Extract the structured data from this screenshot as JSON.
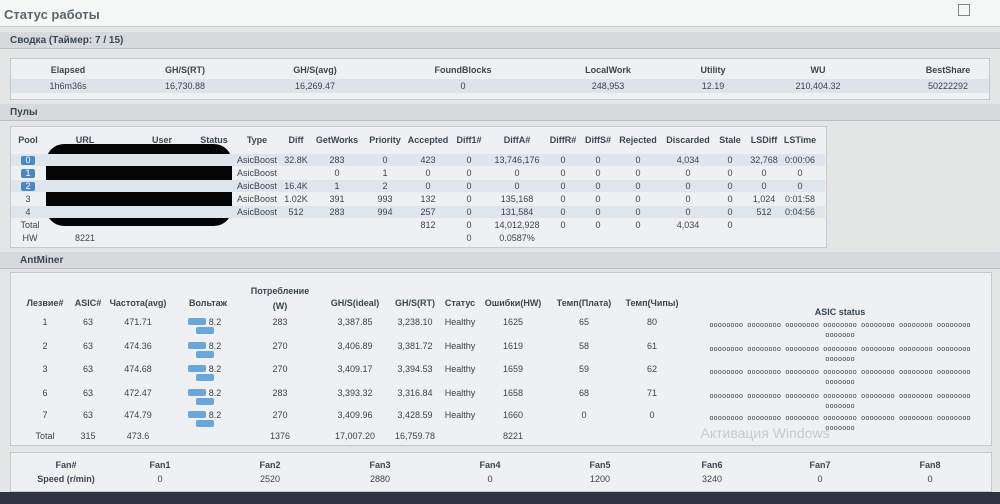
{
  "page_title": "Статус работы",
  "summary": {
    "title": "Сводка (Таймер: 7 / 15)",
    "headers": [
      "Elapsed",
      "GH/S(RT)",
      "GH/S(avg)",
      "FoundBlocks",
      "LocalWork",
      "Utility",
      "WU",
      "BestShare"
    ],
    "values": [
      "1h6m36s",
      "16,730.88",
      "16,269.47",
      "0",
      "248,953",
      "12.19",
      "210,404.32",
      "50222292"
    ]
  },
  "pools": {
    "title": "Пулы",
    "headers": [
      "Pool",
      "URL",
      "User",
      "Status",
      "Type",
      "Diff",
      "GetWorks",
      "Priority",
      "Accepted",
      "Diff1#",
      "DiffA#",
      "DiffR#",
      "DiffS#",
      "Rejected",
      "Discarded",
      "Stale",
      "LSDiff",
      "LSTime"
    ],
    "rows": [
      {
        "pool": "0",
        "cells": [
          "AsicBoost",
          "32.8K",
          "283",
          "0",
          "423",
          "0",
          "13,746,176",
          "0",
          "0",
          "0",
          "4,034",
          "0",
          "32,768",
          "0:00:06"
        ]
      },
      {
        "pool": "1",
        "cells": [
          "AsicBoost",
          null,
          "0",
          "1",
          "0",
          "0",
          "0",
          "0",
          "0",
          "0",
          "0",
          "0",
          "0",
          "0"
        ]
      },
      {
        "pool": "2",
        "cells": [
          "AsicBoost",
          "16.4K",
          "1",
          "2",
          "0",
          "0",
          "0",
          "0",
          "0",
          "0",
          "0",
          "0",
          "0",
          "0"
        ]
      },
      {
        "pool": "3",
        "cells": [
          "AsicBoost",
          "1.02K",
          "391",
          "993",
          "132",
          "0",
          "135,168",
          "0",
          "0",
          "0",
          "0",
          "0",
          "1,024",
          "0:01:58"
        ]
      },
      {
        "pool": "4",
        "cells": [
          "AsicBoost",
          "512",
          "283",
          "994",
          "257",
          "0",
          "131,584",
          "0",
          "0",
          "0",
          "0",
          "0",
          "512",
          "0:04:56"
        ]
      }
    ],
    "total": {
      "label": "Total",
      "cells": [
        null,
        null,
        null,
        null,
        "812",
        "0",
        "14,012,928",
        "0",
        "0",
        "0",
        "4,034",
        "0",
        null,
        null
      ]
    },
    "hw": {
      "label": "HW",
      "value": "8221",
      "cells": [
        null,
        null,
        null,
        null,
        null,
        "0",
        "0.0587%",
        null,
        null,
        null,
        null,
        null,
        null,
        null
      ]
    }
  },
  "antminer": {
    "title": "AntMiner",
    "headers": [
      "Лезвие#",
      "ASIC#",
      "Частота(avg)",
      "Вольтаж",
      "Потребление (W)",
      "GH/S(ideal)",
      "GH/S(RT)",
      "Статус",
      "Ошибки(HW)",
      "Темп(Плата)",
      "Темп(Чипы)",
      "ASIC status"
    ],
    "rows": [
      [
        "1",
        "63",
        "471.71",
        "8.2",
        "283",
        "3,387.85",
        "3,238.10",
        "Healthy",
        "1625",
        "65",
        "80",
        "oooooooo oooooooo oooooooo oooooooo oooooooo oooooooo oooooooo ooooooo"
      ],
      [
        "2",
        "63",
        "474.36",
        "8.2",
        "270",
        "3,406.89",
        "3,381.72",
        "Healthy",
        "1619",
        "58",
        "61",
        "oooooooo oooooooo oooooooo oooooooo oooooooo oooooooo oooooooo ooooooo"
      ],
      [
        "3",
        "63",
        "474.68",
        "8.2",
        "270",
        "3,409.17",
        "3,394.53",
        "Healthy",
        "1659",
        "59",
        "62",
        "oooooooo oooooooo oooooooo oooooooo oooooooo oooooooo oooooooo ooooooo"
      ],
      [
        "6",
        "63",
        "472.47",
        "8.2",
        "283",
        "3,393.32",
        "3,316.84",
        "Healthy",
        "1658",
        "68",
        "71",
        "oooooooo oooooooo oooooooo oooooooo oooooooo oooooooo oooooooo ooooooo"
      ],
      [
        "7",
        "63",
        "474.79",
        "8.2",
        "270",
        "3,409.96",
        "3,428.59",
        "Healthy",
        "1660",
        "0",
        "0",
        "oooooooo oooooooo oooooooo oooooooo oooooooo oooooooo oooooooo ooooooo"
      ],
      [
        "Total",
        "315",
        "473.6",
        null,
        "1376",
        "17,007.20",
        "16,759.78",
        null,
        "8221",
        null,
        null,
        null
      ]
    ]
  },
  "fans": {
    "headers": [
      "Fan#",
      "Fan1",
      "Fan2",
      "Fan3",
      "Fan4",
      "Fan5",
      "Fan6",
      "Fan7",
      "Fan8"
    ],
    "values": [
      "Speed (r/min)",
      "0",
      "2520",
      "2880",
      "0",
      "1200",
      "3240",
      "0",
      "0"
    ]
  },
  "watermark": "Активация Windows"
}
